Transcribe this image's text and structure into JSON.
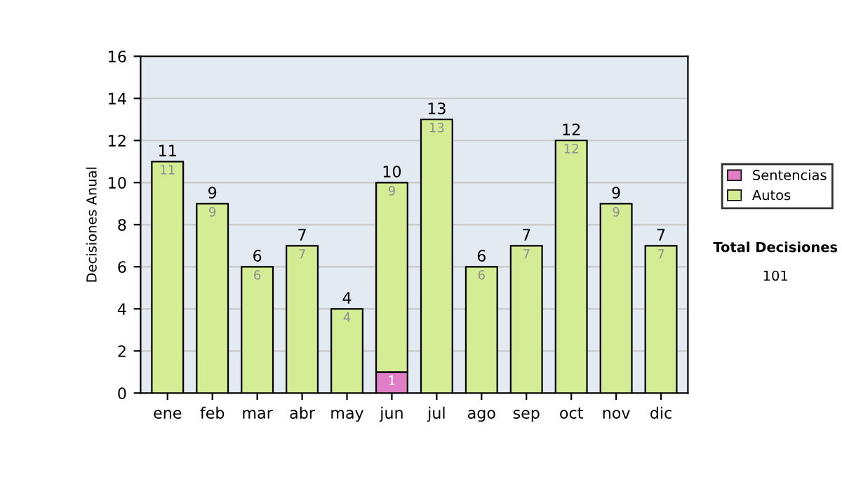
{
  "chart_data": {
    "type": "bar",
    "stacked": true,
    "ylabel": "Decisiones Anual",
    "categories": [
      "ene",
      "feb",
      "mar",
      "abr",
      "may",
      "jun",
      "jul",
      "ago",
      "sep",
      "oct",
      "nov",
      "dic"
    ],
    "series": [
      {
        "name": "Sentencias",
        "color": "#e07fc8",
        "values": [
          0,
          0,
          0,
          0,
          0,
          1,
          0,
          0,
          0,
          0,
          0,
          0
        ],
        "value_labels": [
          null,
          null,
          null,
          null,
          null,
          "1",
          null,
          null,
          null,
          null,
          null,
          null
        ]
      },
      {
        "name": "Autos",
        "color": "#d4ec94",
        "values": [
          11,
          9,
          6,
          7,
          4,
          9,
          13,
          6,
          7,
          12,
          9,
          7
        ],
        "value_labels": [
          "11",
          "9",
          "6",
          "7",
          "4",
          "9",
          "13",
          "6",
          "7",
          "12",
          "9",
          "7"
        ]
      }
    ],
    "totals": [
      "11",
      "9",
      "6",
      "7",
      "4",
      "10",
      "13",
      "6",
      "7",
      "12",
      "9",
      "7"
    ],
    "ylim": [
      0,
      16
    ],
    "yticks": [
      0,
      2,
      4,
      6,
      8,
      10,
      12,
      14,
      16
    ],
    "grid": "y",
    "legend": "right",
    "annotations": [
      "Total Decisiones",
      "101"
    ]
  }
}
